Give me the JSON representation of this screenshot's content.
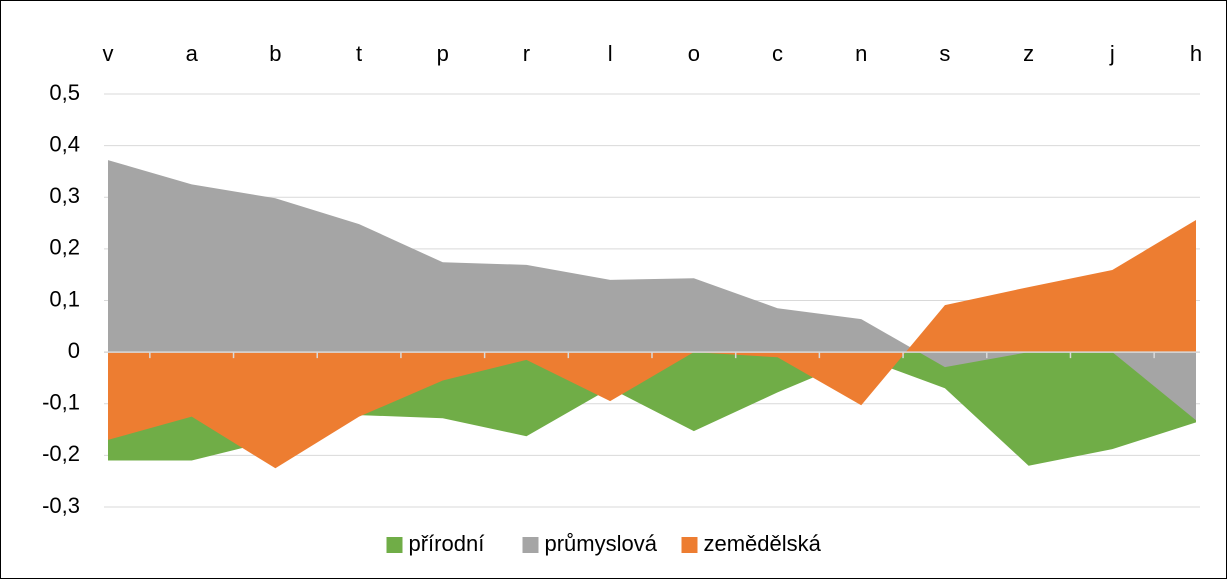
{
  "chart_data": {
    "type": "area",
    "categories": [
      "v",
      "a",
      "b",
      "t",
      "p",
      "r",
      "l",
      "o",
      "c",
      "n",
      "s",
      "z",
      "j",
      "h"
    ],
    "series": [
      {
        "name": "přírodní",
        "color": "#70ad47",
        "values": [
          -0.21,
          -0.21,
          -0.17,
          -0.122,
          -0.128,
          -0.163,
          -0.07,
          -0.153,
          -0.078,
          -0.01,
          -0.07,
          -0.22,
          -0.188,
          -0.136
        ]
      },
      {
        "name": "průmyslová",
        "color": "#a5a5a5",
        "values": [
          0.372,
          0.325,
          0.298,
          0.248,
          0.174,
          0.169,
          0.14,
          0.143,
          0.085,
          0.064,
          -0.029,
          0,
          0,
          -0.132
        ]
      },
      {
        "name": "zemědělská",
        "color": "#ed7d31",
        "values": [
          -0.17,
          -0.125,
          -0.225,
          -0.125,
          -0.055,
          -0.015,
          -0.095,
          0,
          -0.01,
          -0.103,
          0.091,
          0.126,
          0.159,
          0.256
        ]
      }
    ],
    "ylim": [
      -0.3,
      0.5
    ],
    "yticks": [
      {
        "value": -0.3,
        "label": "-0,3"
      },
      {
        "value": -0.2,
        "label": "-0,2"
      },
      {
        "value": -0.1,
        "label": "-0,1"
      },
      0,
      {
        "value": 0.1,
        "label": "0,1"
      },
      {
        "value": 0.2,
        "label": "0,2"
      },
      {
        "value": 0.3,
        "label": "0,3"
      },
      {
        "value": 0.4,
        "label": "0,4"
      },
      {
        "value": 0.5,
        "label": "0,5"
      }
    ],
    "grid": true,
    "legend": "bottom"
  }
}
